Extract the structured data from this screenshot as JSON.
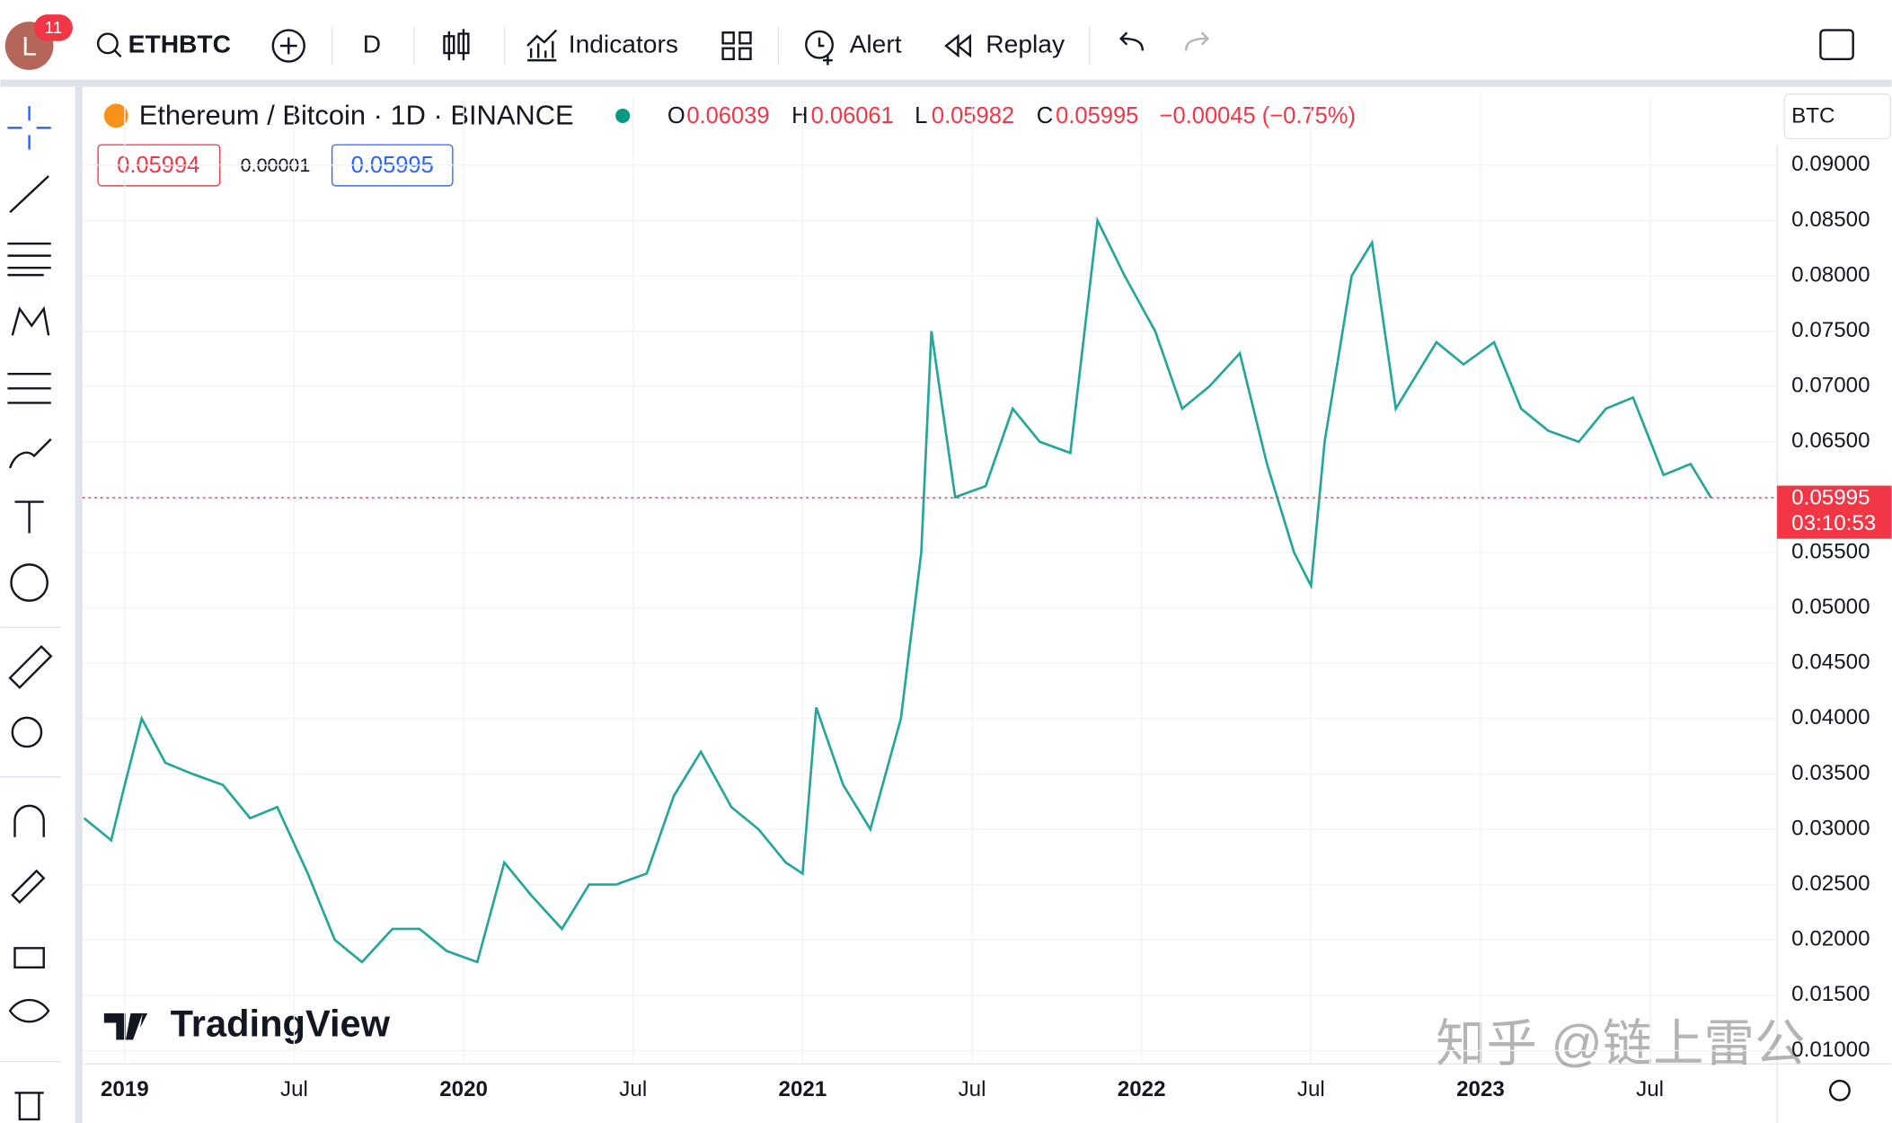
{
  "toolbar": {
    "avatar_letter": "L",
    "avatar_badge": "11",
    "symbol": "ETHBTC",
    "interval": "D",
    "indicators": "Indicators",
    "alert": "Alert",
    "replay": "Replay"
  },
  "legend": {
    "title": "Ethereum / Bitcoin · 1D · BINANCE",
    "o_label": "O",
    "open": "0.06039",
    "h_label": "H",
    "high": "0.06061",
    "l_label": "L",
    "low": "0.05982",
    "c_label": "C",
    "close": "0.05995",
    "change": "−0.00045 (−0.75%)",
    "bid": "0.05994",
    "spread": "0.00001",
    "ask": "0.05995"
  },
  "currency": "BTC",
  "branding": "TradingView",
  "watermark": "知乎 @链上雷公",
  "chart_data": {
    "type": "line",
    "color": "#26a69a",
    "x": [
      2018.88,
      2018.96,
      2019.0,
      2019.05,
      2019.12,
      2019.2,
      2019.29,
      2019.37,
      2019.45,
      2019.54,
      2019.62,
      2019.7,
      2019.79,
      2019.87,
      2019.95,
      2020.04,
      2020.12,
      2020.2,
      2020.29,
      2020.37,
      2020.45,
      2020.54,
      2020.62,
      2020.7,
      2020.79,
      2020.87,
      2020.95,
      2021.0,
      2021.04,
      2021.12,
      2021.2,
      2021.29,
      2021.35,
      2021.38,
      2021.45,
      2021.54,
      2021.62,
      2021.7,
      2021.79,
      2021.87,
      2021.95,
      2022.04,
      2022.12,
      2022.2,
      2022.29,
      2022.37,
      2022.45,
      2022.5,
      2022.54,
      2022.62,
      2022.68,
      2022.75,
      2022.87,
      2022.95,
      2023.04,
      2023.12,
      2023.2,
      2023.29,
      2023.37,
      2023.45,
      2023.54,
      2023.62,
      2023.68
    ],
    "values": [
      0.031,
      0.029,
      0.034,
      0.04,
      0.036,
      0.035,
      0.034,
      0.031,
      0.032,
      0.026,
      0.02,
      0.018,
      0.021,
      0.021,
      0.019,
      0.018,
      0.027,
      0.024,
      0.021,
      0.025,
      0.025,
      0.026,
      0.033,
      0.037,
      0.032,
      0.03,
      0.027,
      0.026,
      0.041,
      0.034,
      0.03,
      0.04,
      0.055,
      0.075,
      0.06,
      0.061,
      0.068,
      0.065,
      0.064,
      0.085,
      0.08,
      0.075,
      0.068,
      0.07,
      0.073,
      0.063,
      0.055,
      0.052,
      0.065,
      0.08,
      0.083,
      0.068,
      0.074,
      0.072,
      0.074,
      0.068,
      0.066,
      0.065,
      0.068,
      0.069,
      0.062,
      0.063,
      0.05995
    ],
    "xlim": [
      2018.875,
      2023.875
    ],
    "ylim": [
      0.0088,
      0.0962
    ],
    "xticks": [
      2019,
      {
        "value": 2019.5,
        "label": "Jul"
      },
      2020,
      {
        "value": 2020.5,
        "label": "Jul"
      },
      2021,
      {
        "value": 2021.5,
        "label": "Jul"
      },
      2022,
      {
        "value": 2022.5,
        "label": "Jul"
      },
      2023,
      {
        "value": 2023.5,
        "label": "Jul"
      }
    ],
    "yticks": [
      {
        "value": 0.01,
        "label": "0.01000"
      },
      {
        "value": 0.015,
        "label": "0.01500"
      },
      {
        "value": 0.02,
        "label": "0.02000"
      },
      {
        "value": 0.025,
        "label": "0.02500"
      },
      {
        "value": 0.03,
        "label": "0.03000"
      },
      {
        "value": 0.035,
        "label": "0.03500"
      },
      {
        "value": 0.04,
        "label": "0.04000"
      },
      {
        "value": 0.045,
        "label": "0.04500"
      },
      {
        "value": 0.05,
        "label": "0.05000"
      },
      {
        "value": 0.055,
        "label": "0.05500"
      },
      {
        "value": 0.06,
        "label": "0.06000"
      },
      {
        "value": 0.065,
        "label": "0.06500"
      },
      {
        "value": 0.07,
        "label": "0.07000"
      },
      {
        "value": 0.075,
        "label": "0.07500"
      },
      {
        "value": 0.08,
        "label": "0.08000"
      },
      {
        "value": 0.085,
        "label": "0.08500"
      },
      {
        "value": 0.09,
        "label": "0.09000"
      }
    ],
    "grid": true,
    "last_price": 0.05995,
    "last_price_label": "0.05995",
    "countdown": "03:10:53"
  }
}
